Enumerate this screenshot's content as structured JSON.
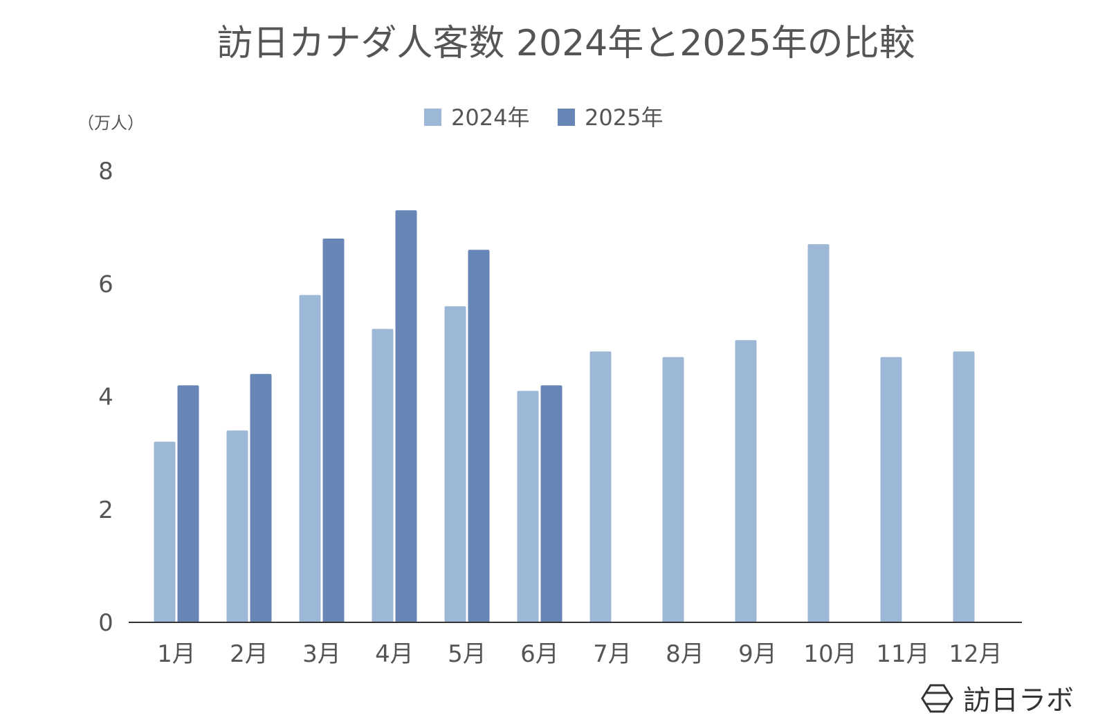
{
  "chart_data": {
    "type": "bar",
    "title": "訪日カナダ人客数 2024年と2025年の比較",
    "unit_label": "（万人）",
    "xlabel": "",
    "ylabel": "",
    "ylim": [
      0,
      8
    ],
    "yticks": [
      "0",
      "2",
      "4",
      "6",
      "8"
    ],
    "grid": false,
    "legend_position": "top-center",
    "categories": [
      "1月",
      "2月",
      "3月",
      "4月",
      "5月",
      "6月",
      "7月",
      "8月",
      "9月",
      "10月",
      "11月",
      "12月"
    ],
    "series": [
      {
        "name": "2024年",
        "color": "#9db8d7",
        "values": [
          3.2,
          3.4,
          5.8,
          5.2,
          5.6,
          4.1,
          4.8,
          4.7,
          5.0,
          6.7,
          4.7,
          4.8
        ]
      },
      {
        "name": "2025年",
        "color": "#6886b5",
        "values": [
          4.2,
          4.4,
          6.8,
          7.3,
          6.6,
          4.2,
          null,
          null,
          null,
          null,
          null,
          null
        ]
      }
    ]
  },
  "brand": {
    "name": "訪日ラボ",
    "icon": "hexagon-logo-icon",
    "color": "#333333"
  },
  "colors": {
    "title": "#555555",
    "axis_text": "#555555",
    "axis_line": "#333333"
  }
}
